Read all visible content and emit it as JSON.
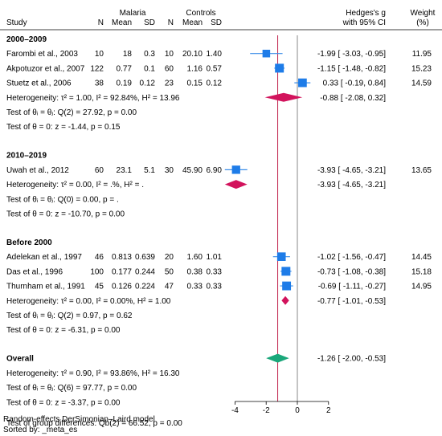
{
  "chart_data": {
    "type": "forest",
    "effect_label": "Hedges's g",
    "ci_label": "with 95% CI",
    "weight_label": "Weight",
    "weight_unit": "(%)",
    "group_headers": {
      "malaria": "Malaria",
      "controls": "Controls"
    },
    "columns": {
      "study": "Study",
      "n": "N",
      "mean": "Mean",
      "sd": "SD"
    },
    "xlim": [
      -4.6,
      2.8
    ],
    "xticks": [
      -4,
      -2,
      0,
      2
    ],
    "overall_effect_line": -1.26,
    "null_line": 0,
    "groups": [
      {
        "name": "2000–2009",
        "studies": [
          {
            "label": "Farombi et al., 2003",
            "m_n": "10",
            "m_mean": "18",
            "m_sd": "0.3",
            "c_n": "10",
            "c_mean": "20.10",
            "c_sd": "1.40",
            "g": -1.99,
            "lo": -3.03,
            "hi": -0.95,
            "ci_text": "-1.99 [ -3.03, -0.95]",
            "weight": "11.95"
          },
          {
            "label": "Akpotuzor et al., 2007",
            "m_n": "122",
            "m_mean": "0.77",
            "m_sd": "0.1",
            "c_n": "60",
            "c_mean": "1.16",
            "c_sd": "0.57",
            "g": -1.15,
            "lo": -1.48,
            "hi": -0.82,
            "ci_text": "-1.15 [ -1.48, -0.82]",
            "weight": "15.23"
          },
          {
            "label": "Stuetz et al., 2006",
            "m_n": "38",
            "m_mean": "0.19",
            "m_sd": "0.12",
            "c_n": "23",
            "c_mean": "0.15",
            "c_sd": "0.12",
            "g": 0.33,
            "lo": -0.19,
            "hi": 0.84,
            "ci_text": "0.33 [ -0.19, 0.84]",
            "weight": "14.59"
          }
        ],
        "pooled": {
          "g": -0.88,
          "lo": -2.08,
          "hi": 0.32,
          "ci_text": "-0.88 [ -2.08, 0.32]",
          "color": "#d2135c"
        },
        "heterogeneity": "Heterogeneity: τ² = 1.00, I² = 92.84%, H² = 13.96",
        "test_equal": "Test of θᵢ = θⱼ: Q(2) = 27.92, p = 0.00",
        "test_zero": "Test of θ = 0: z = -1.44, p = 0.15"
      },
      {
        "name": "2010–2019",
        "studies": [
          {
            "label": "Uwah et al., 2012",
            "m_n": "60",
            "m_mean": "23.1",
            "m_sd": "5.1",
            "c_n": "30",
            "c_mean": "45.90",
            "c_sd": "6.90",
            "g": -3.93,
            "lo": -4.65,
            "hi": -3.21,
            "ci_text": "-3.93 [ -4.65, -3.21]",
            "weight": "13.65"
          }
        ],
        "pooled": {
          "g": -3.93,
          "lo": -4.65,
          "hi": -3.21,
          "ci_text": "-3.93 [ -4.65, -3.21]",
          "color": "#d2135c"
        },
        "heterogeneity": "Heterogeneity: τ² = 0.00, I² = .%, H² = .",
        "test_equal": "Test of θᵢ = θⱼ: Q(0) = 0.00, p = .",
        "test_zero": "Test of θ = 0: z = -10.70, p = 0.00"
      },
      {
        "name": "Before 2000",
        "studies": [
          {
            "label": "Adelekan et al., 1997",
            "m_n": "46",
            "m_mean": "0.813",
            "m_sd": "0.639",
            "c_n": "20",
            "c_mean": "1.60",
            "c_sd": "1.01",
            "g": -1.02,
            "lo": -1.56,
            "hi": -0.47,
            "ci_text": "-1.02 [ -1.56, -0.47]",
            "weight": "14.45"
          },
          {
            "label": "Das et al., 1996",
            "m_n": "100",
            "m_mean": "0.177",
            "m_sd": "0.244",
            "c_n": "50",
            "c_mean": "0.38",
            "c_sd": "0.33",
            "g": -0.73,
            "lo": -1.08,
            "hi": -0.38,
            "ci_text": "-0.73 [ -1.08, -0.38]",
            "weight": "15.18"
          },
          {
            "label": "Thurnham et al., 1991",
            "m_n": "45",
            "m_mean": "0.126",
            "m_sd": "0.224",
            "c_n": "47",
            "c_mean": "0.33",
            "c_sd": "0.33",
            "g": -0.69,
            "lo": -1.11,
            "hi": -0.27,
            "ci_text": "-0.69 [ -1.11, -0.27]",
            "weight": "14.95"
          }
        ],
        "pooled": {
          "g": -0.77,
          "lo": -1.01,
          "hi": -0.53,
          "ci_text": "-0.77 [ -1.01, -0.53]",
          "color": "#d2135c"
        },
        "heterogeneity": "Heterogeneity: τ² = 0.00, I² = 0.00%, H² = 1.00",
        "test_equal": "Test of θᵢ = θⱼ: Q(2) = 0.97, p = 0.62",
        "test_zero": "Test of θ = 0: z = -6.31, p = 0.00"
      }
    ],
    "overall": {
      "name": "Overall",
      "g": -1.26,
      "lo": -2.0,
      "hi": -0.53,
      "ci_text": "-1.26 [ -2.00, -0.53]",
      "color": "#1aa77a",
      "heterogeneity": "Heterogeneity: τ² = 0.90, I² = 93.86%, H² = 16.30",
      "test_equal": "Test of θᵢ = θⱼ: Q(6) = 97.77, p = 0.00",
      "test_zero": "Test of θ = 0: z = -3.37, p = 0.00"
    },
    "group_difference": "Test of group differences: Qb(2) = 66.52, p = 0.00",
    "colors": {
      "marker": "#1e7ce8",
      "ci_line": "#3b8ee8",
      "overall_line": "#c0224d",
      "null_line": "#8a8a8a"
    },
    "footnotes": [
      "Random-effects DerSimonian–Laird model",
      "Sorted by: _meta_es"
    ]
  }
}
